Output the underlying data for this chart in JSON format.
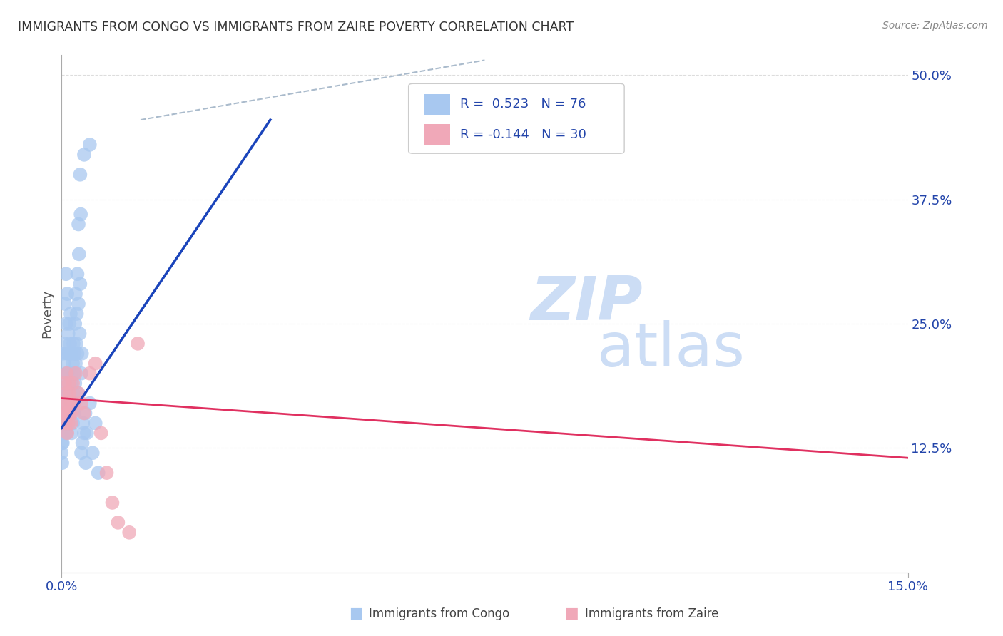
{
  "title": "IMMIGRANTS FROM CONGO VS IMMIGRANTS FROM ZAIRE POVERTY CORRELATION CHART",
  "source": "Source: ZipAtlas.com",
  "ylabel": "Poverty",
  "ytick_labels": [
    "12.5%",
    "25.0%",
    "37.5%",
    "50.0%"
  ],
  "ytick_values": [
    0.125,
    0.25,
    0.375,
    0.5
  ],
  "xlim": [
    0.0,
    0.15
  ],
  "ylim": [
    0.0,
    0.52
  ],
  "xtick_labels": [
    "0.0%",
    "15.0%"
  ],
  "xtick_values": [
    0.0,
    0.15
  ],
  "congo_color": "#a8c8f0",
  "zaire_color": "#f0a8b8",
  "congo_line_color": "#1a44bb",
  "zaire_line_color": "#e03060",
  "grid_color": "#dddddd",
  "watermark_zip_color": "#ccddf5",
  "watermark_atlas_color": "#ccddf5",
  "text_color": "#2244aa",
  "title_color": "#333333",
  "source_color": "#888888",
  "legend_text1": "R =  0.523   N = 76",
  "legend_text2": "R = -0.144   N = 30",
  "bottom_label1": "Immigrants from Congo",
  "bottom_label2": "Immigrants from Zaire",
  "congo_points": [
    [
      0.0002,
      0.22
    ],
    [
      0.0003,
      0.19
    ],
    [
      0.0004,
      0.21
    ],
    [
      0.0005,
      0.16
    ],
    [
      0.0005,
      0.23
    ],
    [
      0.0006,
      0.27
    ],
    [
      0.0007,
      0.14
    ],
    [
      0.0007,
      0.18
    ],
    [
      0.0008,
      0.25
    ],
    [
      0.0008,
      0.3
    ],
    [
      0.0009,
      0.14
    ],
    [
      0.0009,
      0.2
    ],
    [
      0.001,
      0.17
    ],
    [
      0.001,
      0.22
    ],
    [
      0.001,
      0.28
    ],
    [
      0.0011,
      0.16
    ],
    [
      0.0011,
      0.2
    ],
    [
      0.0012,
      0.18
    ],
    [
      0.0012,
      0.24
    ],
    [
      0.0013,
      0.22
    ],
    [
      0.0013,
      0.15
    ],
    [
      0.0014,
      0.19
    ],
    [
      0.0014,
      0.25
    ],
    [
      0.0015,
      0.23
    ],
    [
      0.0015,
      0.17
    ],
    [
      0.0016,
      0.2
    ],
    [
      0.0016,
      0.26
    ],
    [
      0.0017,
      0.22
    ],
    [
      0.0018,
      0.19
    ],
    [
      0.0018,
      0.14
    ],
    [
      0.0019,
      0.17
    ],
    [
      0.002,
      0.21
    ],
    [
      0.002,
      0.15
    ],
    [
      0.0021,
      0.23
    ],
    [
      0.0021,
      0.18
    ],
    [
      0.0022,
      0.2
    ],
    [
      0.0022,
      0.16
    ],
    [
      0.0023,
      0.22
    ],
    [
      0.0024,
      0.25
    ],
    [
      0.0024,
      0.19
    ],
    [
      0.0025,
      0.28
    ],
    [
      0.0025,
      0.21
    ],
    [
      0.0026,
      0.23
    ],
    [
      0.0026,
      0.17
    ],
    [
      0.0027,
      0.26
    ],
    [
      0.0028,
      0.3
    ],
    [
      0.0028,
      0.22
    ],
    [
      0.0029,
      0.18
    ],
    [
      0.003,
      0.35
    ],
    [
      0.003,
      0.27
    ],
    [
      0.0031,
      0.32
    ],
    [
      0.0032,
      0.24
    ],
    [
      0.0033,
      0.4
    ],
    [
      0.0033,
      0.29
    ],
    [
      0.0034,
      0.36
    ],
    [
      0.0035,
      0.12
    ],
    [
      0.0035,
      0.2
    ],
    [
      0.0036,
      0.22
    ],
    [
      0.0037,
      0.13
    ],
    [
      0.0038,
      0.15
    ],
    [
      0.004,
      0.42
    ],
    [
      0.004,
      0.14
    ],
    [
      0.0042,
      0.16
    ],
    [
      0.0043,
      0.11
    ],
    [
      0.0045,
      0.14
    ],
    [
      0.005,
      0.43
    ],
    [
      0.005,
      0.17
    ],
    [
      0.0055,
      0.12
    ],
    [
      0.006,
      0.15
    ],
    [
      0.0065,
      0.1
    ],
    [
      0.0,
      0.14
    ],
    [
      0.0,
      0.12
    ],
    [
      0.0001,
      0.15
    ],
    [
      0.0001,
      0.13
    ],
    [
      0.0001,
      0.11
    ],
    [
      0.0002,
      0.13
    ]
  ],
  "zaire_points": [
    [
      0.0003,
      0.17
    ],
    [
      0.0005,
      0.16
    ],
    [
      0.0006,
      0.19
    ],
    [
      0.0007,
      0.15
    ],
    [
      0.0008,
      0.18
    ],
    [
      0.0009,
      0.2
    ],
    [
      0.001,
      0.16
    ],
    [
      0.001,
      0.14
    ],
    [
      0.0011,
      0.17
    ],
    [
      0.0012,
      0.15
    ],
    [
      0.0013,
      0.19
    ],
    [
      0.0014,
      0.18
    ],
    [
      0.0015,
      0.16
    ],
    [
      0.0016,
      0.17
    ],
    [
      0.0017,
      0.15
    ],
    [
      0.0018,
      0.16
    ],
    [
      0.002,
      0.19
    ],
    [
      0.0022,
      0.17
    ],
    [
      0.0025,
      0.2
    ],
    [
      0.003,
      0.18
    ],
    [
      0.0035,
      0.17
    ],
    [
      0.004,
      0.16
    ],
    [
      0.005,
      0.2
    ],
    [
      0.006,
      0.21
    ],
    [
      0.007,
      0.14
    ],
    [
      0.008,
      0.1
    ],
    [
      0.009,
      0.07
    ],
    [
      0.01,
      0.05
    ],
    [
      0.012,
      0.04
    ],
    [
      0.0135,
      0.23
    ]
  ],
  "congo_trend_x": [
    0.0,
    0.037
  ],
  "congo_trend_y": [
    0.145,
    0.455
  ],
  "zaire_trend_x": [
    0.0,
    0.15
  ],
  "zaire_trend_y": [
    0.175,
    0.115
  ],
  "dash_line_x": [
    0.014,
    0.075
  ],
  "dash_line_y": [
    0.455,
    0.515
  ]
}
